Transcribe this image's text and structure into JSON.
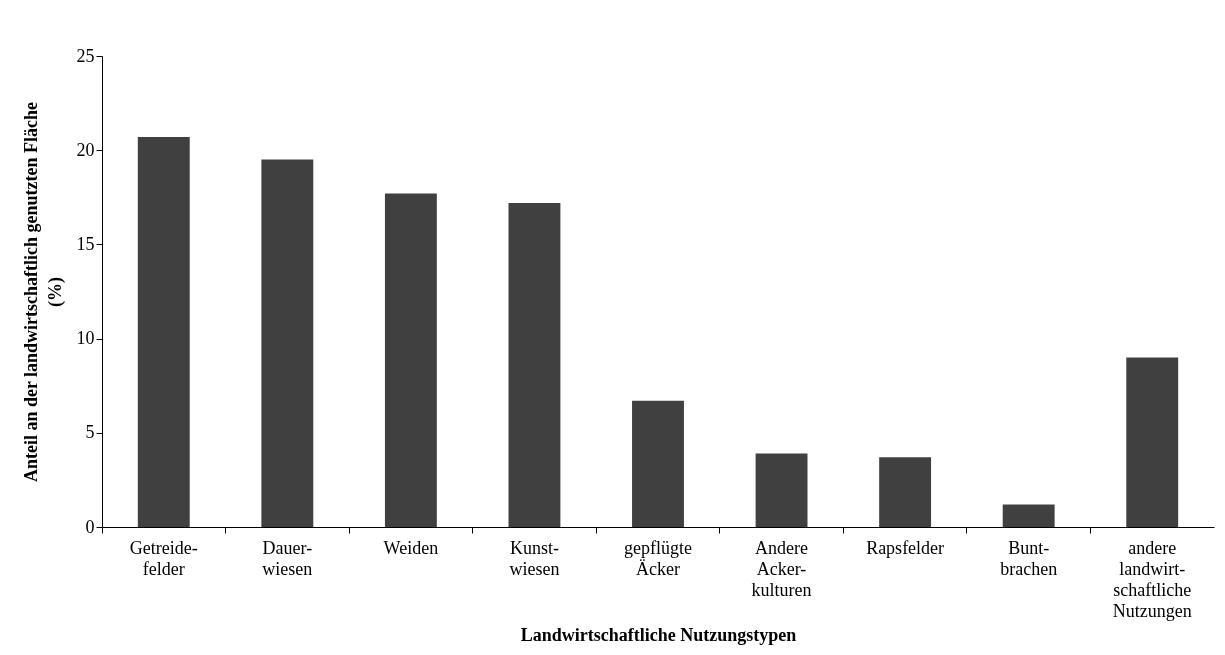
{
  "chart_data": {
    "type": "bar",
    "xlabel": "Landwirtschaftliche Nutzungstypen",
    "ylabel": "Anteil an der landwirtschaftlich genutzten Fläche\n(%)",
    "categories": [
      "Getreide-\nfelder",
      "Dauer-\nwiesen",
      "Weiden",
      "Kunst-\nwiesen",
      "gepflügte\nÄcker",
      "Andere\nAcker-\nkulturen",
      "Rapsfelder",
      "Bunt-\nbrachen",
      "andere\nlandwirt-\nschaftliche\nNutzungen"
    ],
    "values": [
      20.7,
      19.5,
      17.7,
      17.2,
      6.7,
      3.9,
      3.7,
      1.2,
      9.0
    ],
    "color": "#404040",
    "ylim": [
      0,
      25
    ],
    "yticks": [
      0,
      5,
      10,
      15,
      20,
      25
    ],
    "grid": false
  }
}
